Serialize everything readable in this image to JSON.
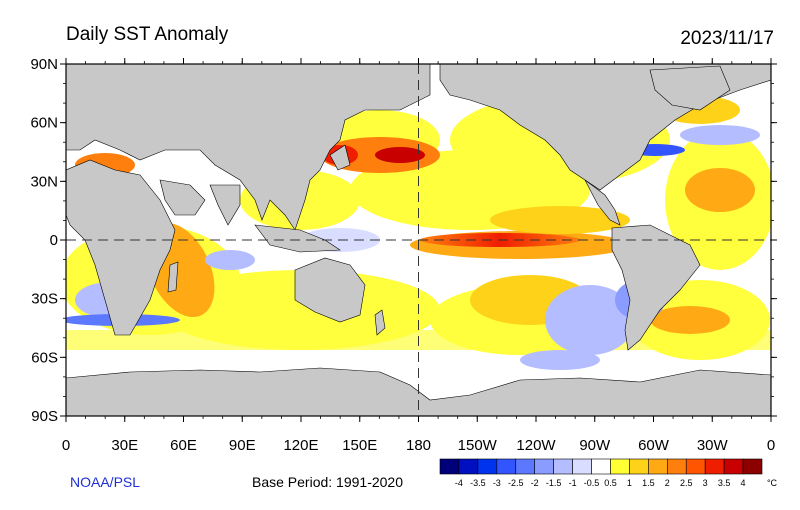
{
  "title": "Daily SST Anomaly",
  "date": "2023/11/17",
  "credit": "NOAA/PSL",
  "base_period": "Base Period: 1991-2020",
  "lat_labels": [
    "90N",
    "60N",
    "30N",
    "0",
    "30S",
    "60S",
    "90S"
  ],
  "lon_labels": [
    "0",
    "30E",
    "60E",
    "90E",
    "120E",
    "150E",
    "180",
    "150W",
    "120W",
    "90W",
    "60W",
    "30W",
    "0"
  ],
  "colorbar": {
    "unit": "°C",
    "tick_labels": [
      "-4",
      "-3.5",
      "-3",
      "-2.5",
      "-2",
      "-1.5",
      "-1",
      "-0.5",
      "0.5",
      "1",
      "1.5",
      "2",
      "2.5",
      "3",
      "3.5",
      "4"
    ],
    "colors": [
      "#00007a",
      "#0010c0",
      "#0033ee",
      "#3355ff",
      "#5b78ff",
      "#8a9cff",
      "#b4bdff",
      "#d9ddff",
      "#ffffff",
      "#ffff33",
      "#ffd21a",
      "#ffaa14",
      "#ff7f0e",
      "#ff5500",
      "#f01e00",
      "#c80000",
      "#8c0000"
    ]
  },
  "colors": {
    "land": "#c8c8c8",
    "ocean_neutral": "#ffffff",
    "credit": "#1f2fd6"
  }
}
